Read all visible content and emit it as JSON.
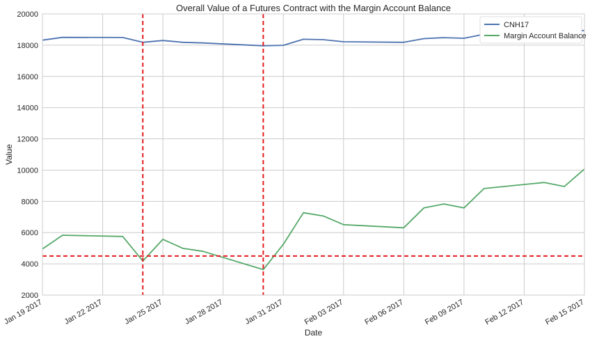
{
  "chart_data": {
    "type": "line",
    "title": "Overall Value of a Futures Contract with the Margin Account Balance",
    "xlabel": "Date",
    "ylabel": "Value",
    "xlim": [
      "2017-01-19",
      "2017-02-15"
    ],
    "ylim": [
      2000,
      20000
    ],
    "yticks": [
      2000,
      4000,
      6000,
      8000,
      10000,
      12000,
      14000,
      16000,
      18000,
      20000
    ],
    "xticks": [
      {
        "date": "2017-01-19",
        "label": "Jan 19 2017"
      },
      {
        "date": "2017-01-22",
        "label": "Jan 22 2017"
      },
      {
        "date": "2017-01-25",
        "label": "Jan 25 2017"
      },
      {
        "date": "2017-01-28",
        "label": "Jan 28 2017"
      },
      {
        "date": "2017-01-31",
        "label": "Jan 31 2017"
      },
      {
        "date": "2017-02-03",
        "label": "Feb 03 2017"
      },
      {
        "date": "2017-02-06",
        "label": "Feb 06 2017"
      },
      {
        "date": "2017-02-09",
        "label": "Feb 09 2017"
      },
      {
        "date": "2017-02-12",
        "label": "Feb 12 2017"
      },
      {
        "date": "2017-02-15",
        "label": "Feb 15 2017"
      }
    ],
    "grid": true,
    "legend_position": "top-right",
    "series": [
      {
        "name": "CNH17",
        "color": "#4c72b0",
        "points": [
          [
            "2017-01-19",
            18320
          ],
          [
            "2017-01-20",
            18500
          ],
          [
            "2017-01-23",
            18490
          ],
          [
            "2017-01-24",
            18180
          ],
          [
            "2017-01-25",
            18300
          ],
          [
            "2017-01-26",
            18180
          ],
          [
            "2017-01-27",
            18140
          ],
          [
            "2017-01-30",
            17960
          ],
          [
            "2017-01-31",
            17990
          ],
          [
            "2017-02-01",
            18380
          ],
          [
            "2017-02-02",
            18350
          ],
          [
            "2017-02-03",
            18220
          ],
          [
            "2017-02-06",
            18180
          ],
          [
            "2017-02-07",
            18420
          ],
          [
            "2017-02-08",
            18480
          ],
          [
            "2017-02-09",
            18440
          ],
          [
            "2017-02-10",
            18700
          ],
          [
            "2017-02-13",
            18820
          ],
          [
            "2017-02-14",
            18750
          ],
          [
            "2017-02-15",
            18950
          ]
        ]
      },
      {
        "name": "Margin Account Balance",
        "color": "#55a868",
        "points": [
          [
            "2017-01-19",
            4950
          ],
          [
            "2017-01-20",
            5830
          ],
          [
            "2017-01-23",
            5750
          ],
          [
            "2017-01-24",
            4180
          ],
          [
            "2017-01-25",
            5570
          ],
          [
            "2017-01-26",
            4990
          ],
          [
            "2017-01-27",
            4800
          ],
          [
            "2017-01-30",
            3630
          ],
          [
            "2017-01-31",
            5250
          ],
          [
            "2017-02-01",
            7270
          ],
          [
            "2017-02-02",
            7060
          ],
          [
            "2017-02-03",
            6510
          ],
          [
            "2017-02-06",
            6310
          ],
          [
            "2017-02-07",
            7580
          ],
          [
            "2017-02-08",
            7830
          ],
          [
            "2017-02-09",
            7580
          ],
          [
            "2017-02-10",
            8820
          ],
          [
            "2017-02-13",
            9210
          ],
          [
            "2017-02-14",
            8950
          ],
          [
            "2017-02-15",
            10070
          ]
        ]
      }
    ],
    "reference_lines": [
      {
        "orientation": "vertical",
        "date": "2017-01-24",
        "color": "#e41a1c",
        "style": "dashed"
      },
      {
        "orientation": "vertical",
        "date": "2017-01-30",
        "color": "#e41a1c",
        "style": "dashed"
      },
      {
        "orientation": "horizontal",
        "value": 4500,
        "color": "#e41a1c",
        "style": "dashed"
      }
    ]
  }
}
